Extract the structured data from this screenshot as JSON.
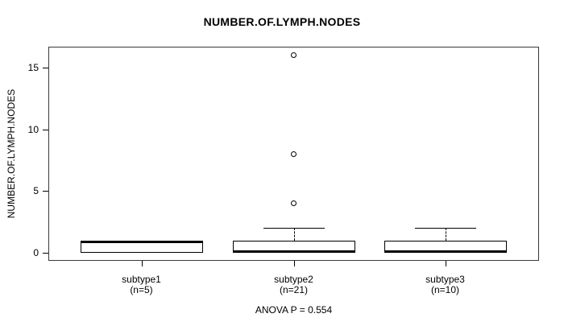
{
  "figure": {
    "title": "NUMBER.OF.LYMPH.NODES"
  },
  "chart_data": {
    "type": "boxplot",
    "title": "NUMBER.OF.LYMPH.NODES",
    "ylabel": "NUMBER.OF.LYMPH.NODES",
    "xlabel": "",
    "yticks": [
      0,
      5,
      10,
      15
    ],
    "ytick_labels": [
      "0",
      "5",
      "10",
      "15"
    ],
    "ylim": [
      -0.65,
      16.7
    ],
    "grid": false,
    "annotation": "ANOVA P = 0.554",
    "groups": [
      {
        "label": "subtype1",
        "sublabel": "(n=5)",
        "n": 5,
        "q1": 0,
        "median": 1,
        "q3": 1,
        "whisker_low": 0,
        "whisker_high": 1,
        "outliers": []
      },
      {
        "label": "subtype2",
        "sublabel": "(n=21)",
        "n": 21,
        "q1": 0,
        "median": 0,
        "q3": 1,
        "whisker_low": 0,
        "whisker_high": 2,
        "outliers": [
          4,
          8,
          16
        ]
      },
      {
        "label": "subtype3",
        "sublabel": "(n=10)",
        "n": 10,
        "q1": 0,
        "median": 0,
        "q3": 1,
        "whisker_low": 0,
        "whisker_high": 2,
        "outliers": []
      }
    ],
    "colors": {
      "background": "#ffffff",
      "box_fill": "#ffffff",
      "line": "#000000",
      "frame": "#3a3a3a",
      "text": "#000000"
    }
  }
}
